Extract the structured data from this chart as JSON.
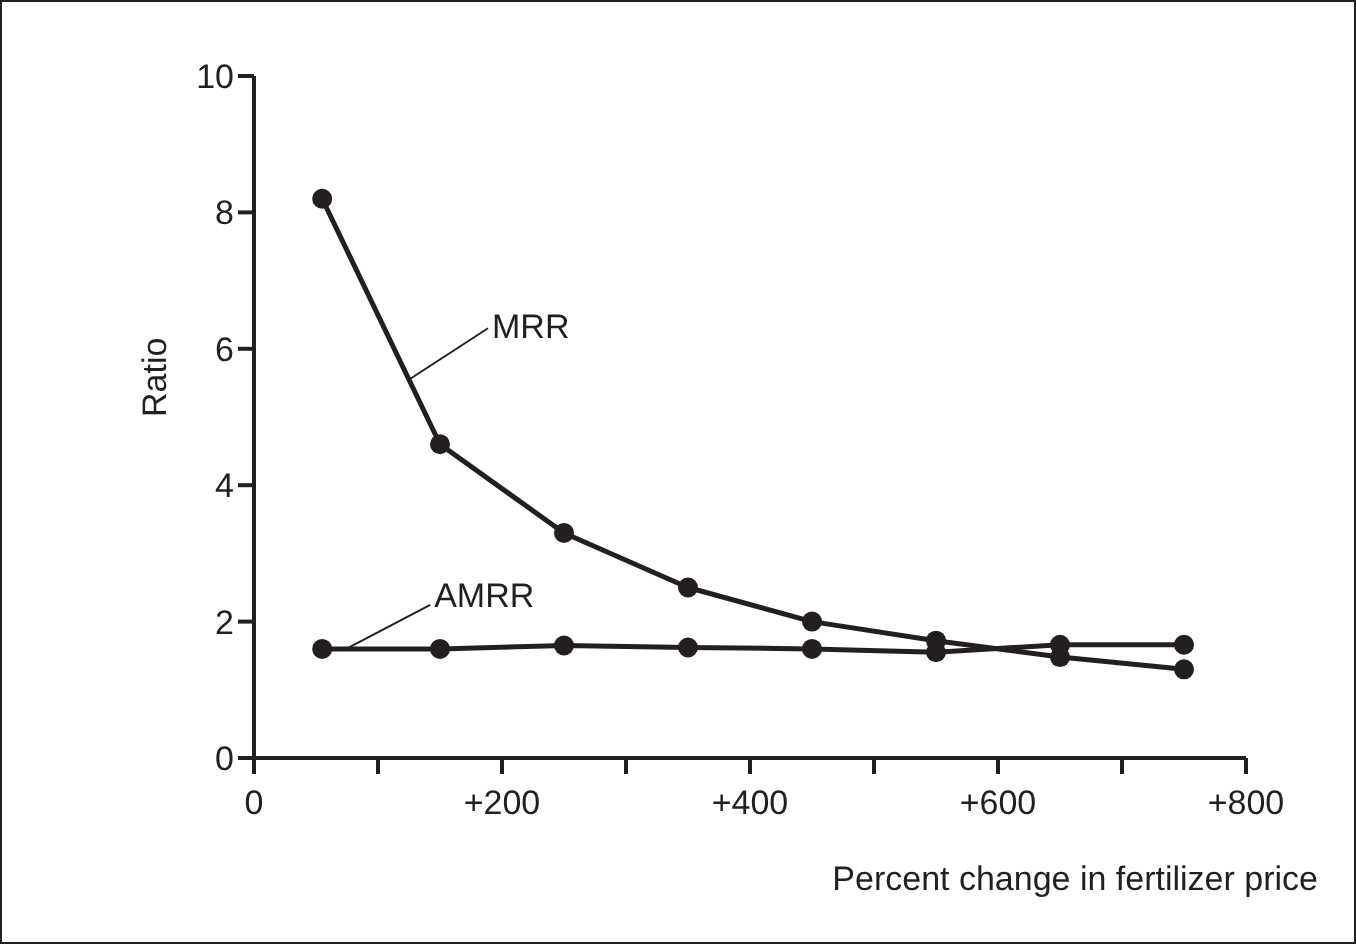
{
  "chart_data": {
    "type": "line",
    "xlabel": "Percent change in fertilizer price",
    "ylabel": "Ratio",
    "x": [
      55,
      150,
      250,
      350,
      450,
      550,
      650,
      750
    ],
    "series": [
      {
        "name": "MRR",
        "color": "#231f20",
        "values": [
          8.2,
          4.6,
          3.3,
          2.5,
          2.0,
          1.72,
          1.48,
          1.3
        ]
      },
      {
        "name": "AMRR",
        "color": "#231f20",
        "values": [
          1.6,
          1.6,
          1.65,
          1.62,
          1.6,
          1.55,
          1.66,
          1.66
        ]
      }
    ],
    "xlim": [
      0,
      800
    ],
    "xticks": [
      0,
      {
        "value": 100,
        "label": null
      },
      {
        "value": 200,
        "label": "+200"
      },
      {
        "value": 300,
        "label": null
      },
      {
        "value": 400,
        "label": "+400"
      },
      {
        "value": 500,
        "label": null
      },
      {
        "value": 600,
        "label": "+600"
      },
      {
        "value": 700,
        "label": null
      },
      {
        "value": 800,
        "label": "+800"
      }
    ],
    "ylim": [
      0,
      10
    ],
    "yticks": [
      0,
      2,
      4,
      6,
      8,
      10
    ],
    "grid": false,
    "legend": false,
    "marker": "circle",
    "line_style": "solid"
  }
}
